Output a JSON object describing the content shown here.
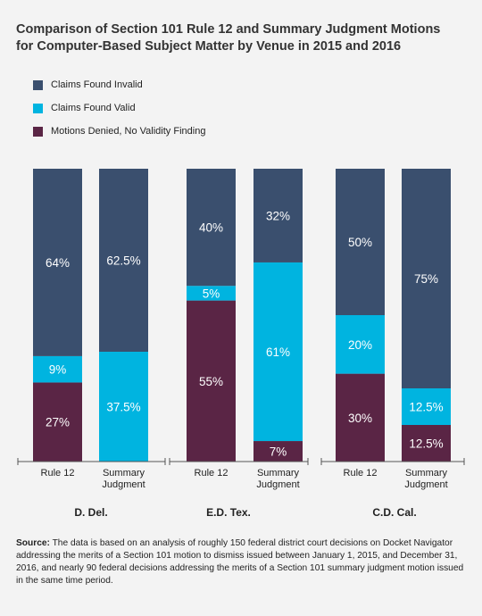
{
  "title_line1": "Comparison of Section 101 Rule 12 and Summary Judgment Motions",
  "title_line2": "for Computer-Based Subject Matter by Venue in 2015 and 2016",
  "colors": {
    "invalid": "#3a4f6e",
    "valid": "#00b4e0",
    "denied": "#5a2545",
    "baseline": "#555555"
  },
  "source": {
    "label": "Source:",
    "text": " The data is based on an analysis of roughly 150 federal district court decisions on Docket Navigator addressing the merits of a Section 101 motion to dismiss issued between January 1, 2015, and December 31, 2016, and nearly 90 federal decisions addressing the merits of a Section 101 summary judgment motion issued in the same time period."
  },
  "chart_data": {
    "type": "bar",
    "stacked": true,
    "percent": true,
    "ylim": [
      0,
      100
    ],
    "grid": false,
    "legend_position": "top-left",
    "series": [
      {
        "key": "denied",
        "name": "Motions Denied, No Validity Finding",
        "values": [
          27,
          0,
          55,
          7,
          30,
          12.5
        ],
        "labels": [
          "27%",
          "",
          "55%",
          "7%",
          "30%",
          "12.5%"
        ]
      },
      {
        "key": "valid",
        "name": "Claims Found Valid",
        "values": [
          9,
          37.5,
          5,
          61,
          20,
          12.5
        ],
        "labels": [
          "9%",
          "37.5%",
          "5%",
          "61%",
          "20%",
          "12.5%"
        ]
      },
      {
        "key": "invalid",
        "name": "Claims Found Invalid",
        "values": [
          64,
          62.5,
          40,
          32,
          50,
          75
        ],
        "labels": [
          "64%",
          "62.5%",
          "40%",
          "32%",
          "50%",
          "75%"
        ]
      }
    ],
    "legend_order": [
      "invalid",
      "valid",
      "denied"
    ],
    "categories": [
      {
        "label": [
          "Rule 12"
        ],
        "group": 0
      },
      {
        "label": [
          "Summary",
          "Judgment"
        ],
        "group": 0
      },
      {
        "label": [
          "Rule 12"
        ],
        "group": 1
      },
      {
        "label": [
          "Summary",
          "Judgment"
        ],
        "group": 1
      },
      {
        "label": [
          "Rule 12"
        ],
        "group": 2
      },
      {
        "label": [
          "Summary",
          "Judgment"
        ],
        "group": 2
      }
    ],
    "groups": [
      "D. Del.",
      "E.D. Tex.",
      "C.D. Cal."
    ]
  }
}
